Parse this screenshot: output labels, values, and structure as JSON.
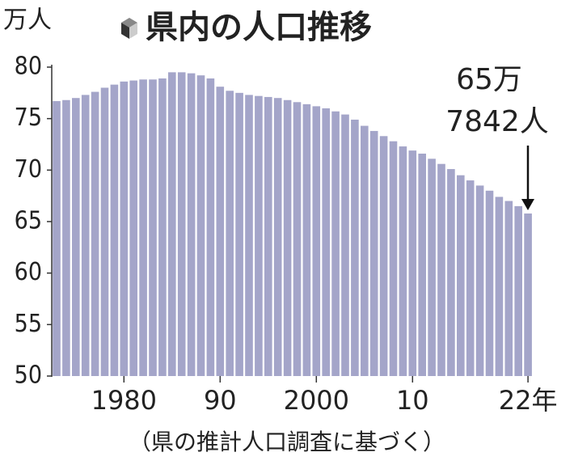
{
  "chart_data": {
    "type": "bar",
    "title": "県内の人口推移",
    "y_unit": "万人",
    "source": "（県の推計人口調査に基づく）",
    "annotation": [
      "65万",
      "7842人"
    ],
    "categories": [
      null,
      null,
      null,
      null,
      null,
      null,
      null,
      "1980",
      null,
      null,
      null,
      null,
      null,
      null,
      null,
      null,
      null,
      "90",
      null,
      null,
      null,
      null,
      null,
      null,
      null,
      null,
      null,
      "2000",
      null,
      null,
      null,
      null,
      null,
      null,
      null,
      null,
      null,
      "10",
      null,
      null,
      null,
      null,
      null,
      null,
      null,
      null,
      null,
      null,
      null,
      "22年"
    ],
    "values": [
      76.7,
      76.8,
      77.0,
      77.3,
      77.6,
      78.0,
      78.3,
      78.6,
      78.7,
      78.8,
      78.8,
      78.9,
      79.5,
      79.5,
      79.4,
      79.2,
      78.9,
      78.1,
      77.7,
      77.5,
      77.3,
      77.2,
      77.1,
      77.0,
      76.8,
      76.6,
      76.4,
      76.2,
      76.0,
      75.7,
      75.4,
      74.9,
      74.3,
      73.8,
      73.3,
      72.8,
      72.3,
      71.9,
      71.6,
      71.1,
      70.6,
      70.1,
      69.5,
      69.0,
      68.5,
      68.0,
      67.4,
      67.0,
      66.5,
      65.7842
    ],
    "color": "#a4a5c9",
    "ylim": [
      50,
      80
    ],
    "yticks": [
      50,
      55,
      60,
      65,
      70,
      75,
      80
    ]
  }
}
